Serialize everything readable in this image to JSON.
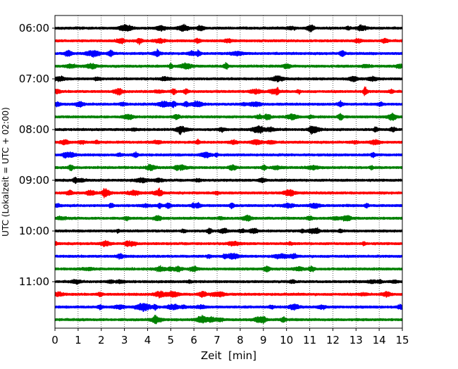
{
  "chart_data": {
    "type": "line",
    "chart_kind": "helicorder seismogram",
    "xlabel": "Zeit  [min]",
    "ylabel": "UTC (Lokalzeit = UTC + 02:00)",
    "xlim": [
      0,
      15
    ],
    "x_ticks": [
      "0",
      "1",
      "2",
      "3",
      "4",
      "5",
      "6",
      "7",
      "8",
      "9",
      "10",
      "11",
      "12",
      "13",
      "14",
      "15"
    ],
    "y_tick_labels": [
      "06:00",
      "07:00",
      "08:00",
      "09:00",
      "10:00",
      "11:00"
    ],
    "trace_interval_min": 15,
    "start_time": "06:00",
    "end_time": "11:45",
    "trace_count": 24,
    "grid": "vertical dotted lines at each minute",
    "legend": "none",
    "color_cycle": [
      "#000000",
      "#ff0000",
      "#0000ff",
      "#008000"
    ],
    "traces": [
      {
        "start": "06:00",
        "color": "#000000"
      },
      {
        "start": "06:15",
        "color": "#ff0000"
      },
      {
        "start": "06:30",
        "color": "#0000ff"
      },
      {
        "start": "06:45",
        "color": "#008000"
      },
      {
        "start": "07:00",
        "color": "#000000"
      },
      {
        "start": "07:15",
        "color": "#ff0000"
      },
      {
        "start": "07:30",
        "color": "#0000ff"
      },
      {
        "start": "07:45",
        "color": "#008000"
      },
      {
        "start": "08:00",
        "color": "#000000"
      },
      {
        "start": "08:15",
        "color": "#ff0000"
      },
      {
        "start": "08:30",
        "color": "#0000ff"
      },
      {
        "start": "08:45",
        "color": "#008000"
      },
      {
        "start": "09:00",
        "color": "#000000"
      },
      {
        "start": "09:15",
        "color": "#ff0000"
      },
      {
        "start": "09:30",
        "color": "#0000ff"
      },
      {
        "start": "09:45",
        "color": "#008000"
      },
      {
        "start": "10:00",
        "color": "#000000"
      },
      {
        "start": "10:15",
        "color": "#ff0000"
      },
      {
        "start": "10:30",
        "color": "#0000ff"
      },
      {
        "start": "10:45",
        "color": "#008000"
      },
      {
        "start": "11:00",
        "color": "#000000"
      },
      {
        "start": "11:15",
        "color": "#ff0000"
      },
      {
        "start": "11:30",
        "color": "#0000ff"
      },
      {
        "start": "11:45",
        "color": "#008000"
      }
    ]
  }
}
